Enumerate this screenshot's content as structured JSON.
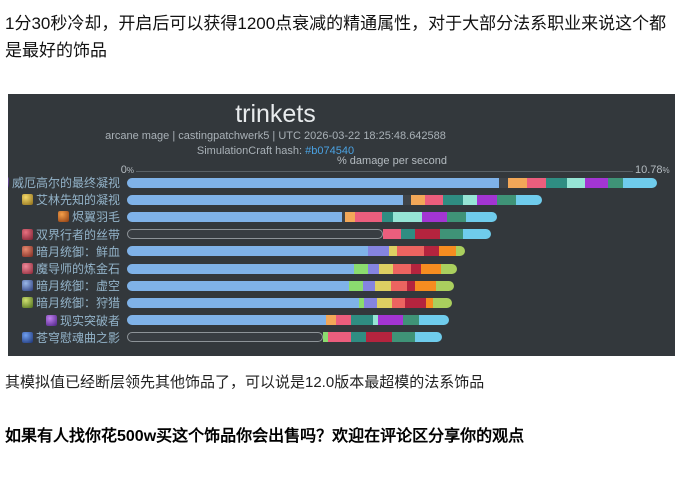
{
  "page": {
    "intro_text": "1分30秒冷却，开启后可以获得1200点衰减的精通属性，对于大部分法系职业来说这个都是最好的饰品",
    "outro_text": "其模拟值已经断层领先其他饰品了，可以说是12.0版本最超模的法系饰品",
    "question_text": "如果有人找你花500w买这个饰品你会出售吗？欢迎在评论区分享你的观点"
  },
  "chart": {
    "title": "trinkets",
    "subtitle": "arcane mage | castingpatchwerk5 | UTC 2026-03-22 18:25:48.642588",
    "hash_label": "SimulationCraft hash:",
    "hash_value": "#b074540",
    "axis_title": "% damage per second",
    "axis_min_label": "0",
    "axis_max_label": "10.78",
    "percent_sign": "%",
    "panel_bg": "#33383c",
    "hash_link_color": "#4aa2e2"
  },
  "chart_data": {
    "type": "bar",
    "orientation": "horizontal",
    "stacked": true,
    "title": "trinkets",
    "xlabel": "% damage per second",
    "xlim": [
      0,
      10.78
    ],
    "grid": false,
    "legend": "none",
    "palette": {
      "blue": "#7fb2e8",
      "dim": "#3f4449",
      "orange": "#f2a758",
      "pink": "#eb5e7d",
      "teal": "#2f8d82",
      "mint": "#96e5d5",
      "purple": "#a335d2",
      "seagreen": "#3f9377",
      "sky": "#6fccec",
      "peri": "#8584e0",
      "yellow": "#ddcf62",
      "salmon": "#ec6460",
      "crimson": "#b4243e",
      "orange2": "#f68c20",
      "ygreen": "#aacf5e",
      "green": "#8bdc6f"
    },
    "categories": [
      "威厄高尔的最终凝视",
      "艾林先知的凝视",
      "烬翼羽毛",
      "双界行者的丝带",
      "暗月统御：鲜血",
      "魔导师的炼金石",
      "暗月统御：虚空",
      "暗月统御：狩猎",
      "现实突破者",
      "苍穹慰魂曲之影"
    ],
    "totals": [
      10.78,
      8.45,
      7.52,
      7.4,
      6.88,
      6.72,
      6.66,
      6.61,
      6.56,
      6.4
    ],
    "bars": [
      {
        "label": "威厄高尔的最终凝视",
        "icon": "trinket-icon-purple-orb",
        "icon_colors": [
          "#b08ae8",
          "#2e1f55"
        ],
        "total": 10.78,
        "segments": [
          [
            "blue",
            7.56
          ],
          [
            "dim",
            0.18
          ],
          [
            "orange",
            0.4
          ],
          [
            "pink",
            0.39
          ],
          [
            "teal",
            0.41
          ],
          [
            "mint",
            0.37
          ],
          [
            "purple",
            0.47
          ],
          [
            "seagreen",
            0.3
          ],
          [
            "sky",
            0.7
          ]
        ]
      },
      {
        "label": "艾林先知的凝视",
        "icon": "trinket-icon-golden-eye",
        "icon_colors": [
          "#f5d96a",
          "#8a6a18"
        ],
        "total": 8.45,
        "segments": [
          [
            "blue",
            5.62
          ],
          [
            "dim",
            0.16
          ],
          [
            "orange",
            0.28
          ],
          [
            "pink",
            0.37
          ],
          [
            "teal",
            0.4
          ],
          [
            "mint",
            0.28
          ],
          [
            "purple",
            0.41
          ],
          [
            "seagreen",
            0.4
          ],
          [
            "sky",
            0.53
          ]
        ]
      },
      {
        "label": "烬翼羽毛",
        "icon": "trinket-icon-ember-feather",
        "icon_colors": [
          "#f5a04a",
          "#8a3a10"
        ],
        "total": 7.52,
        "segments": [
          [
            "blue",
            4.38
          ],
          [
            "dim",
            0.06
          ],
          [
            "orange",
            0.2
          ],
          [
            "pink",
            0.54
          ],
          [
            "teal",
            0.24
          ],
          [
            "mint",
            0.58
          ],
          [
            "purple",
            0.5
          ],
          [
            "seagreen",
            0.4
          ],
          [
            "sky",
            0.62
          ]
        ]
      },
      {
        "label": "双界行者的丝带",
        "icon": "trinket-icon-red-ribbon",
        "icon_colors": [
          "#e87080",
          "#7a2030"
        ],
        "total": 7.4,
        "segments": [
          [
            "hollow",
            5.2
          ],
          [
            "pink",
            0.37
          ],
          [
            "teal",
            0.28
          ],
          [
            "crimson",
            0.51
          ],
          [
            "seagreen",
            0.48
          ],
          [
            "sky",
            0.56
          ]
        ]
      },
      {
        "label": "暗月统御：鲜血",
        "icon": "trinket-icon-blood-card",
        "icon_colors": [
          "#e88a70",
          "#7a2820"
        ],
        "total": 6.88,
        "segments": [
          [
            "blue",
            4.9
          ],
          [
            "peri",
            0.42
          ],
          [
            "yellow",
            0.18
          ],
          [
            "salmon",
            0.54
          ],
          [
            "crimson",
            0.3
          ],
          [
            "orange2",
            0.35
          ],
          [
            "ygreen",
            0.19
          ]
        ]
      },
      {
        "label": "魔导师的炼金石",
        "icon": "trinket-icon-alchemist-stone",
        "icon_colors": [
          "#f08a9a",
          "#8a2535"
        ],
        "total": 6.72,
        "segments": [
          [
            "blue",
            4.62
          ],
          [
            "green",
            0.29
          ],
          [
            "peri",
            0.22
          ],
          [
            "yellow",
            0.28
          ],
          [
            "salmon",
            0.36
          ],
          [
            "crimson",
            0.22
          ],
          [
            "orange2",
            0.4
          ],
          [
            "ygreen",
            0.33
          ]
        ]
      },
      {
        "label": "暗月统御：虚空",
        "icon": "trinket-icon-void-card",
        "icon_colors": [
          "#9ab8e8",
          "#2a3a7a"
        ],
        "total": 6.66,
        "segments": [
          [
            "blue",
            4.52
          ],
          [
            "green",
            0.29
          ],
          [
            "peri",
            0.24
          ],
          [
            "yellow",
            0.32
          ],
          [
            "salmon",
            0.32
          ],
          [
            "crimson",
            0.16
          ],
          [
            "orange2",
            0.44
          ],
          [
            "ygreen",
            0.37
          ]
        ]
      },
      {
        "label": "暗月统御：狩猎",
        "icon": "trinket-icon-hunt-card",
        "icon_colors": [
          "#cfe070",
          "#4a6a1a"
        ],
        "total": 6.61,
        "segments": [
          [
            "blue",
            4.72
          ],
          [
            "green",
            0.1
          ],
          [
            "peri",
            0.27
          ],
          [
            "yellow",
            0.3
          ],
          [
            "salmon",
            0.27
          ],
          [
            "crimson",
            0.42
          ],
          [
            "orange2",
            0.14
          ],
          [
            "ygreen",
            0.39
          ]
        ]
      },
      {
        "label": "现实突破者",
        "icon": "trinket-icon-reality-breaker",
        "icon_colors": [
          "#c080f0",
          "#4a2080"
        ],
        "total": 6.56,
        "segments": [
          [
            "blue",
            4.05
          ],
          [
            "orange",
            0.21
          ],
          [
            "pink",
            0.29
          ],
          [
            "teal",
            0.45
          ],
          [
            "mint",
            0.1
          ],
          [
            "purple",
            0.52
          ],
          [
            "seagreen",
            0.33
          ],
          [
            "sky",
            0.61
          ]
        ]
      },
      {
        "label": "苍穹慰魂曲之影",
        "icon": "trinket-icon-sky-requiem",
        "icon_colors": [
          "#70a0f0",
          "#1a3070"
        ],
        "total": 6.4,
        "segments": [
          [
            "hollow",
            3.98
          ],
          [
            "green",
            0.1
          ],
          [
            "pink",
            0.47
          ],
          [
            "teal",
            0.32
          ],
          [
            "crimson",
            0.53
          ],
          [
            "seagreen",
            0.45
          ],
          [
            "sky",
            0.55
          ]
        ]
      }
    ]
  }
}
